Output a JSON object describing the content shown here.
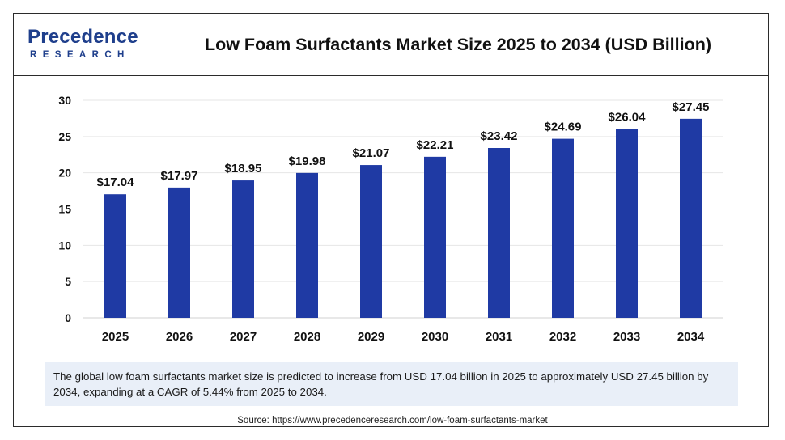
{
  "logo": {
    "brand_top": "Precedence",
    "brand_bottom": "RESEARCH"
  },
  "colors": {
    "bar": "#1f3aa4",
    "frame": "#2b2b2b",
    "grid": "#e6e6e6",
    "desc_bg": "#e9eff8"
  },
  "chart_data": {
    "type": "bar",
    "title": "Low Foam Surfactants Market Size 2025 to 2034 (USD Billion)",
    "xlabel": "",
    "ylabel": "",
    "categories": [
      "2025",
      "2026",
      "2027",
      "2028",
      "2029",
      "2030",
      "2031",
      "2032",
      "2033",
      "2034"
    ],
    "values": [
      17.04,
      17.97,
      18.95,
      19.98,
      21.07,
      22.21,
      23.42,
      24.69,
      26.04,
      27.45
    ],
    "value_labels": [
      "$17.04",
      "$17.97",
      "$18.95",
      "$19.98",
      "$21.07",
      "$22.21",
      "$23.42",
      "$24.69",
      "$26.04",
      "$27.45"
    ],
    "ylim": [
      0,
      30
    ],
    "yticks": [
      0,
      5,
      10,
      15,
      20,
      25,
      30
    ],
    "grid": true,
    "legend": "none"
  },
  "description": "The global low foam surfactants market size is predicted to increase from USD 17.04 billion in 2025 to approximately USD 27.45 billion by 2034, expanding at a CAGR of 5.44% from 2025 to 2034.",
  "source": "Source: https://www.precedenceresearch.com/low-foam-surfactants-market"
}
